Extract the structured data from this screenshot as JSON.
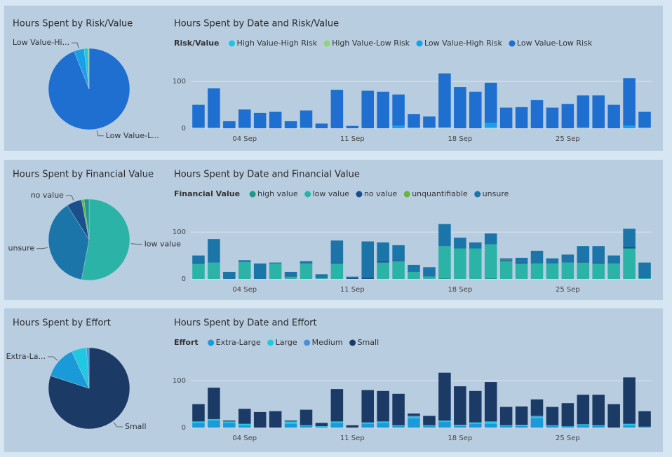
{
  "chart_data": [
    {
      "type": "pie",
      "title": "Hours Spent by Risk/Value",
      "categories": [
        "Low Value-Low Risk",
        "Low Value-High Risk",
        "High Value-High Risk",
        "High Value-Low Risk"
      ],
      "values": [
        94,
        4,
        1.5,
        0.5
      ],
      "colors": [
        "#1e6fd0",
        "#1aa0e8",
        "#22c4e0",
        "#8fd47a"
      ],
      "slice_labels": [
        "Low Value-L...",
        "Low Value-Hi...",
        null,
        null
      ]
    },
    {
      "type": "bar",
      "title": "Hours Spent by Date and Risk/Value",
      "legend_title": "Risk/Value",
      "categories": [
        null,
        null,
        null,
        "04 Sep",
        null,
        null,
        null,
        null,
        null,
        null,
        "11 Sep",
        null,
        null,
        null,
        null,
        null,
        null,
        "18 Sep",
        null,
        null,
        null,
        null,
        null,
        null,
        "25 Sep",
        null,
        null,
        null,
        null,
        null
      ],
      "ylim": [
        0,
        130
      ],
      "yticks": [
        0,
        100
      ],
      "grid": true,
      "stacked": true,
      "series": [
        {
          "name": "High Value-High Risk",
          "color": "#22c4e0",
          "values": [
            0,
            0,
            0,
            0,
            0,
            0,
            0,
            0,
            0,
            0,
            0,
            0,
            0,
            0,
            0,
            0,
            0,
            0,
            0,
            2,
            0,
            0,
            0,
            0,
            0,
            0,
            0,
            0,
            0,
            0
          ]
        },
        {
          "name": "High Value-Low Risk",
          "color": "#8fd47a",
          "values": [
            0,
            0,
            0,
            0,
            0,
            0,
            0,
            0,
            0,
            0,
            0,
            0,
            0,
            0,
            0,
            0,
            1,
            0,
            0,
            0,
            0,
            0,
            0,
            0,
            0,
            0,
            0,
            0,
            0,
            0
          ]
        },
        {
          "name": "Low Value-High Risk",
          "color": "#1aa0e8",
          "values": [
            3,
            2,
            0,
            2,
            0,
            0,
            0,
            2,
            0,
            0,
            0,
            0,
            0,
            6,
            3,
            3,
            2,
            0,
            0,
            10,
            0,
            0,
            0,
            0,
            0,
            3,
            0,
            0,
            6,
            3
          ]
        },
        {
          "name": "Low Value-Low Risk",
          "color": "#1e6fd0",
          "values": [
            47,
            83,
            15,
            38,
            33,
            35,
            15,
            36,
            10,
            82,
            5,
            80,
            78,
            66,
            27,
            22,
            114,
            88,
            78,
            85,
            44,
            45,
            60,
            44,
            52,
            67,
            70,
            50,
            101,
            32
          ]
        }
      ]
    },
    {
      "type": "pie",
      "title": "Hours Spent by Financial Value",
      "categories": [
        "low value",
        "unsure",
        "no value",
        "unquantifiable",
        "high value"
      ],
      "values": [
        53,
        38,
        6,
        1,
        2
      ],
      "colors": [
        "#2bb3a8",
        "#1b75a8",
        "#1a4f8c",
        "#6bb33f",
        "#1a9a8c"
      ],
      "slice_labels": [
        "low value",
        "unsure",
        "no value",
        null,
        null
      ]
    },
    {
      "type": "bar",
      "title": "Hours Spent by Date and Financial Value",
      "legend_title": "Financial Value",
      "categories": [
        null,
        null,
        null,
        "04 Sep",
        null,
        null,
        null,
        null,
        null,
        null,
        "11 Sep",
        null,
        null,
        null,
        null,
        null,
        null,
        "18 Sep",
        null,
        null,
        null,
        null,
        null,
        null,
        "25 Sep",
        null,
        null,
        null,
        null,
        null
      ],
      "ylim": [
        0,
        130
      ],
      "yticks": [
        0,
        100
      ],
      "grid": true,
      "stacked": true,
      "series": [
        {
          "name": "high value",
          "color": "#1a9a8c",
          "values": [
            0,
            0,
            0,
            0,
            0,
            0,
            0,
            0,
            0,
            0,
            0,
            0,
            0,
            0,
            0,
            0,
            2,
            0,
            0,
            2,
            0,
            0,
            0,
            0,
            0,
            0,
            0,
            0,
            0,
            0
          ]
        },
        {
          "name": "low value",
          "color": "#2bb3a8",
          "values": [
            33,
            35,
            0,
            37,
            0,
            33,
            5,
            33,
            3,
            33,
            0,
            0,
            35,
            38,
            15,
            5,
            68,
            65,
            65,
            72,
            38,
            33,
            33,
            33,
            35,
            35,
            33,
            33,
            65,
            2
          ]
        },
        {
          "name": "no value",
          "color": "#1a4f8c",
          "values": [
            2,
            0,
            0,
            2,
            0,
            0,
            2,
            0,
            2,
            2,
            2,
            3,
            3,
            2,
            0,
            0,
            0,
            0,
            0,
            0,
            2,
            2,
            0,
            0,
            0,
            2,
            2,
            0,
            3,
            2
          ]
        },
        {
          "name": "unquantifiable",
          "color": "#6bb33f",
          "values": [
            0,
            0,
            0,
            0,
            0,
            0,
            0,
            0,
            0,
            0,
            0,
            0,
            0,
            0,
            0,
            0,
            0,
            0,
            0,
            0,
            1,
            0,
            0,
            0,
            0,
            0,
            0,
            0,
            0,
            0
          ]
        },
        {
          "name": "unsure",
          "color": "#1b75a8",
          "values": [
            15,
            50,
            15,
            1,
            33,
            2,
            8,
            5,
            5,
            47,
            3,
            77,
            40,
            32,
            15,
            20,
            47,
            23,
            13,
            23,
            3,
            10,
            27,
            11,
            17,
            33,
            35,
            17,
            39,
            31
          ]
        }
      ]
    },
    {
      "type": "pie",
      "title": "Hours Spent by Effort",
      "categories": [
        "Small",
        "Extra-Large",
        "Large",
        "Medium"
      ],
      "values": [
        80,
        13,
        6,
        1
      ],
      "colors": [
        "#1b3a66",
        "#1a9ad8",
        "#22c8e2",
        "#4a90d9"
      ],
      "slice_labels": [
        "Small",
        "Extra-La...",
        null,
        null
      ]
    },
    {
      "type": "bar",
      "title": "Hours Spent by Date and Effort",
      "legend_title": "Effort",
      "categories": [
        null,
        null,
        null,
        "04 Sep",
        null,
        null,
        null,
        null,
        null,
        null,
        "11 Sep",
        null,
        null,
        null,
        null,
        null,
        null,
        "18 Sep",
        null,
        null,
        null,
        null,
        null,
        null,
        "25 Sep",
        null,
        null,
        null,
        null,
        null
      ],
      "ylim": [
        0,
        130
      ],
      "yticks": [
        0,
        100
      ],
      "grid": true,
      "stacked": true,
      "series": [
        {
          "name": "Extra-Large",
          "color": "#1a9ad8",
          "values": [
            10,
            15,
            10,
            5,
            0,
            0,
            8,
            3,
            2,
            10,
            0,
            8,
            10,
            3,
            20,
            3,
            12,
            3,
            8,
            8,
            3,
            3,
            20,
            3,
            3,
            5,
            3,
            0,
            5,
            2
          ]
        },
        {
          "name": "Large",
          "color": "#22c8e2",
          "values": [
            3,
            3,
            3,
            3,
            0,
            0,
            5,
            2,
            1,
            3,
            0,
            3,
            3,
            2,
            3,
            2,
            3,
            3,
            3,
            5,
            2,
            3,
            3,
            2,
            0,
            2,
            2,
            0,
            3,
            0
          ]
        },
        {
          "name": "Medium",
          "color": "#4a90d9",
          "values": [
            0,
            0,
            0,
            0,
            0,
            0,
            0,
            0,
            0,
            0,
            0,
            0,
            0,
            0,
            2,
            0,
            0,
            0,
            0,
            0,
            0,
            0,
            2,
            0,
            0,
            0,
            0,
            0,
            0,
            0
          ]
        },
        {
          "name": "Small",
          "color": "#1b3a66",
          "values": [
            37,
            67,
            2,
            32,
            33,
            35,
            2,
            33,
            7,
            69,
            5,
            69,
            65,
            67,
            5,
            20,
            102,
            82,
            67,
            84,
            39,
            39,
            35,
            39,
            49,
            63,
            65,
            50,
            99,
            33
          ]
        }
      ]
    }
  ]
}
